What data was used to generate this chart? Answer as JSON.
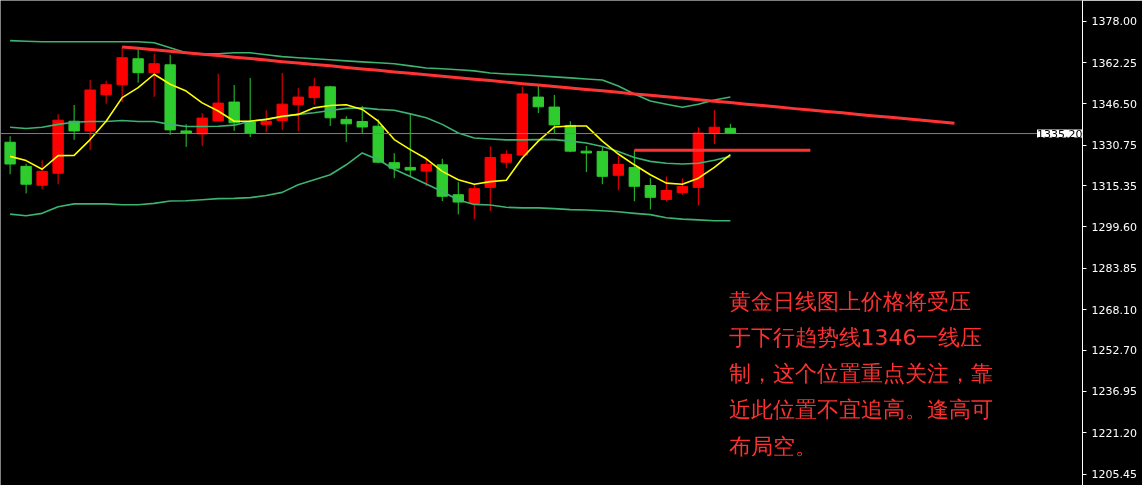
{
  "chart_data": {
    "type": "candlestick",
    "categories": [
      null,
      null,
      null,
      null,
      null,
      null,
      null,
      null,
      null,
      null,
      null,
      null,
      null,
      null,
      null,
      null,
      null,
      null,
      null,
      null,
      null,
      null,
      null,
      null,
      null,
      null,
      null,
      null,
      null,
      null,
      null,
      null,
      null,
      null,
      null,
      null,
      null,
      null,
      null,
      null,
      null,
      null,
      null,
      null,
      null,
      null,
      null,
      null,
      null,
      null,
      null,
      null,
      null,
      null,
      null,
      null,
      null,
      null,
      null,
      null
    ],
    "ohlc": [
      [
        1331.9,
        1334.2,
        1319.7,
        1323.6
      ],
      [
        1322.7,
        1323.7,
        1312.4,
        1315.9
      ],
      [
        1315.5,
        1325.0,
        1314.0,
        1320.8
      ],
      [
        1320.1,
        1342.6,
        1315.9,
        1340.3
      ],
      [
        1339.9,
        1346.1,
        1332.8,
        1336.2
      ],
      [
        1336.2,
        1355.6,
        1328.9,
        1351.8
      ],
      [
        1350.0,
        1355.3,
        1346.6,
        1353.8
      ],
      [
        1353.8,
        1368.0,
        1347.3,
        1364.1
      ],
      [
        1363.7,
        1367.2,
        1354.6,
        1358.4
      ],
      [
        1358.4,
        1365.6,
        1349.2,
        1361.8
      ],
      [
        1361.4,
        1365.2,
        1334.7,
        1336.6
      ],
      [
        1336.2,
        1338.8,
        1330.1,
        1335.4
      ],
      [
        1335.1,
        1343.0,
        1330.5,
        1341.1
      ],
      [
        1340.0,
        1358.0,
        1340.0,
        1346.8
      ],
      [
        1347.2,
        1353.7,
        1336.2,
        1339.3
      ],
      [
        1339.6,
        1356.4,
        1333.9,
        1335.4
      ],
      [
        1338.7,
        1344.1,
        1335.7,
        1339.9
      ],
      [
        1340.2,
        1358.3,
        1336.6,
        1346.4
      ],
      [
        1346.2,
        1352.6,
        1336.1,
        1349.1
      ],
      [
        1348.9,
        1356.4,
        1346.2,
        1353.0
      ],
      [
        1353.0,
        1353.4,
        1338.1,
        1341.2
      ],
      [
        1340.6,
        1341.8,
        1332.0,
        1338.9
      ],
      [
        1339.8,
        1345.7,
        1335.4,
        1337.7
      ],
      [
        1338.0,
        1340.6,
        1323.9,
        1324.3
      ],
      [
        1324.1,
        1327.7,
        1318.2,
        1322.0
      ],
      [
        1322.3,
        1342.5,
        1318.7,
        1321.3
      ],
      [
        1320.9,
        1325.5,
        1315.1,
        1323.4
      ],
      [
        1323.3,
        1325.6,
        1309.5,
        1311.3
      ],
      [
        1311.9,
        1316.7,
        1304.4,
        1309.1
      ],
      [
        1308.6,
        1315.7,
        1302.5,
        1314.2
      ],
      [
        1314.7,
        1330.3,
        1305.7,
        1326.1
      ],
      [
        1324.3,
        1328.8,
        1322.0,
        1327.3
      ],
      [
        1327.0,
        1353.0,
        1327.0,
        1350.3
      ],
      [
        1349.1,
        1353.4,
        1343.0,
        1345.4
      ],
      [
        1345.3,
        1349.9,
        1335.4,
        1338.5
      ],
      [
        1338.3,
        1339.9,
        1328.1,
        1328.5
      ],
      [
        1328.5,
        1330.5,
        1320.5,
        1327.8
      ],
      [
        1328.4,
        1330.5,
        1315.9,
        1318.9
      ],
      [
        1319.3,
        1326.6,
        1313.6,
        1323.4
      ],
      [
        1322.3,
        1328.8,
        1309.4,
        1315.1
      ],
      [
        1315.4,
        1318.2,
        1306.3,
        1310.9
      ],
      [
        1310.1,
        1318.8,
        1309.4,
        1313.5
      ],
      [
        1312.7,
        1318.1,
        1311.9,
        1315.0
      ],
      [
        1314.7,
        1337.6,
        1307.8,
        1335.4
      ],
      [
        1335.4,
        1344.1,
        1331.2,
        1337.6
      ],
      [
        1337.2,
        1338.9,
        1335.1,
        1335.4
      ],
      null,
      null,
      null,
      null,
      null,
      null,
      null,
      null,
      null,
      null,
      null,
      null,
      null,
      null
    ],
    "colors": [
      "#2ecc2e",
      "#2ecc2e",
      "#ff0000",
      "#ff0000",
      "#2ecc2e",
      "#ff0000",
      "#ff0000",
      "#ff0000",
      "#2ecc2e",
      "#ff0000",
      "#2ecc2e",
      "#2ecc2e",
      "#ff0000",
      "#ff0000",
      "#2ecc2e",
      "#2ecc2e",
      "#ff0000",
      "#ff0000",
      "#ff0000",
      "#ff0000",
      "#2ecc2e",
      "#2ecc2e",
      "#2ecc2e",
      "#2ecc2e",
      "#2ecc2e",
      "#2ecc2e",
      "#ff0000",
      "#2ecc2e",
      "#2ecc2e",
      "#ff0000",
      "#ff0000",
      "#ff0000",
      "#ff0000",
      "#2ecc2e",
      "#2ecc2e",
      "#2ecc2e",
      "#2ecc2e",
      "#2ecc2e",
      "#ff0000",
      "#2ecc2e",
      "#2ecc2e",
      "#ff0000",
      "#ff0000",
      "#ff0000",
      "#ff0000",
      "#2ecc2e",
      null,
      null,
      null,
      null,
      null,
      null,
      null,
      null,
      null,
      null,
      null,
      null,
      null,
      null
    ],
    "series": [
      {
        "type": "line",
        "color": "#3cb371",
        "values": [
          1370.6,
          1370.4,
          1370.2,
          1370.2,
          1370.2,
          1370.2,
          1370.2,
          1370.2,
          1370.2,
          1369.8,
          1367.9,
          1366.0,
          1365.6,
          1365.6,
          1366.0,
          1366.0,
          1365.2,
          1364.5,
          1364.1,
          1363.7,
          1363.3,
          1362.9,
          1362.5,
          1362.2,
          1361.8,
          1361.0,
          1360.2,
          1359.9,
          1359.5,
          1359.1,
          1358.3,
          1357.9,
          1357.6,
          1357.2,
          1356.8,
          1356.4,
          1356.0,
          1355.6,
          1353.3,
          1350.3,
          1347.6,
          1346.4,
          1345.2,
          1346.4,
          1348.0,
          1349.1,
          null,
          null,
          null,
          null,
          null,
          null,
          null,
          null,
          null,
          null,
          null,
          null,
          null,
          null
        ]
      },
      {
        "type": "line",
        "color": "#3cb371",
        "values": [
          1337.6,
          1337.1,
          1337.6,
          1338.7,
          1339.5,
          1339.8,
          1339.8,
          1340.2,
          1339.8,
          1339.8,
          1338.7,
          1337.9,
          1337.9,
          1338.0,
          1338.4,
          1339.9,
          1340.6,
          1341.6,
          1342.5,
          1343.1,
          1344.0,
          1344.8,
          1345.0,
          1344.4,
          1344.1,
          1342.7,
          1341.2,
          1338.7,
          1335.4,
          1333.5,
          1333.1,
          1332.8,
          1332.8,
          1332.9,
          1332.9,
          1332.3,
          1331.6,
          1330.3,
          1328.4,
          1326.1,
          1324.6,
          1323.9,
          1323.6,
          1323.9,
          1325.0,
          1326.5,
          null,
          null,
          null,
          null,
          null,
          null,
          null,
          null,
          null,
          null,
          null,
          null,
          null,
          null
        ]
      },
      {
        "type": "line",
        "color": "#3cb371",
        "values": [
          1304.5,
          1303.9,
          1304.8,
          1307.3,
          1308.4,
          1308.4,
          1308.4,
          1308.1,
          1308.1,
          1308.6,
          1309.5,
          1309.6,
          1310.0,
          1310.4,
          1310.5,
          1310.8,
          1311.6,
          1312.8,
          1315.7,
          1317.6,
          1319.5,
          1323.3,
          1327.8,
          1325.2,
          1321.6,
          1318.8,
          1316.0,
          1313.1,
          1309.9,
          1308.2,
          1308.0,
          1307.1,
          1306.9,
          1306.9,
          1306.6,
          1306.2,
          1306.1,
          1305.8,
          1305.4,
          1304.8,
          1304.3,
          1303.1,
          1302.6,
          1302.3,
          1302.0,
          1302.0,
          null,
          null,
          null,
          null,
          null,
          null,
          null,
          null,
          null,
          null,
          null,
          null,
          null,
          null
        ]
      },
      {
        "type": "line",
        "color": "#ffff00",
        "values": [
          1326.5,
          1324.9,
          1321.6,
          1326.8,
          1326.9,
          1332.9,
          1339.9,
          1348.9,
          1352.7,
          1357.8,
          1354.0,
          1351.4,
          1346.9,
          1343.8,
          1339.9,
          1339.9,
          1340.6,
          1341.8,
          1342.5,
          1345.0,
          1345.9,
          1346.2,
          1344.4,
          1339.9,
          1332.9,
          1329.1,
          1325.6,
          1320.8,
          1317.6,
          1315.9,
          1316.9,
          1317.4,
          1325.9,
          1332.3,
          1337.7,
          1338.1,
          1338.1,
          1332.3,
          1327.4,
          1323.3,
          1319.5,
          1316.3,
          1315.9,
          1318.2,
          1322.3,
          1327.2,
          null,
          null,
          null,
          null,
          null,
          null,
          null,
          null,
          null,
          null,
          null,
          null,
          null,
          null
        ]
      },
      {
        "type": "line",
        "color": "#ff3333",
        "values": [
          null,
          null,
          null,
          null,
          null,
          null,
          null,
          1368.2,
          1367.7,
          1367.1,
          1366.6,
          1366.0,
          1365.4,
          1364.9,
          1364.3,
          1363.8,
          1363.2,
          1362.6,
          1362.1,
          1361.5,
          1361.0,
          1360.4,
          1359.8,
          1359.3,
          1358.7,
          1358.2,
          1357.6,
          1357.0,
          1356.5,
          1355.9,
          1355.4,
          1354.8,
          1354.2,
          1353.7,
          1353.1,
          1352.6,
          1352.0,
          1351.5,
          1350.9,
          1350.3,
          1349.8,
          1349.2,
          1348.7,
          1348.1,
          1347.5,
          1347.0,
          1346.4,
          1345.9,
          1345.3,
          1344.7,
          1344.2,
          1343.6,
          1343.1,
          1342.5,
          1341.9,
          1341.4,
          1340.8,
          1340.3,
          1339.7,
          1339.1
        ]
      },
      {
        "type": "line",
        "color": "#ff3333",
        "values": [
          null,
          null,
          null,
          null,
          null,
          null,
          null,
          null,
          null,
          null,
          null,
          null,
          null,
          null,
          null,
          null,
          null,
          null,
          null,
          null,
          null,
          null,
          null,
          null,
          null,
          null,
          null,
          null,
          null,
          null,
          null,
          null,
          null,
          null,
          null,
          null,
          null,
          null,
          null,
          1328.8,
          1328.8,
          1328.8,
          1328.8,
          1328.8,
          1328.8,
          1328.8,
          1328.8,
          1328.8,
          1328.8,
          1328.8,
          1328.8,
          null,
          null,
          null,
          null,
          null,
          null,
          null,
          null,
          null
        ]
      }
    ],
    "ylim": [
      1201.1,
      1385.9
    ],
    "yticks": [
      {
        "value": 1378,
        "label": "1378.00"
      },
      1362.25,
      {
        "value": 1346.5,
        "label": "1346.50"
      },
      1330.75,
      1315.35,
      {
        "value": 1299.6,
        "label": "1299.60"
      },
      1283.85,
      {
        "value": 1268.1,
        "label": "1268.10"
      },
      {
        "value": 1252.7,
        "label": "1252.70"
      },
      1236.95,
      {
        "value": 1221.2,
        "label": "1221.20"
      },
      1205.45
    ],
    "tick_labels": "y",
    "ref_lines": [
      {
        "axis": "y",
        "value": 1335.2,
        "label": "1335.20",
        "color": "#808080"
      }
    ],
    "annotations": [
      "黄金日线图上价格将受压于下行趋势线1346一线压制，这个位置重点关注，靠近此位置不宜追高。逢高可布局空。"
    ]
  }
}
